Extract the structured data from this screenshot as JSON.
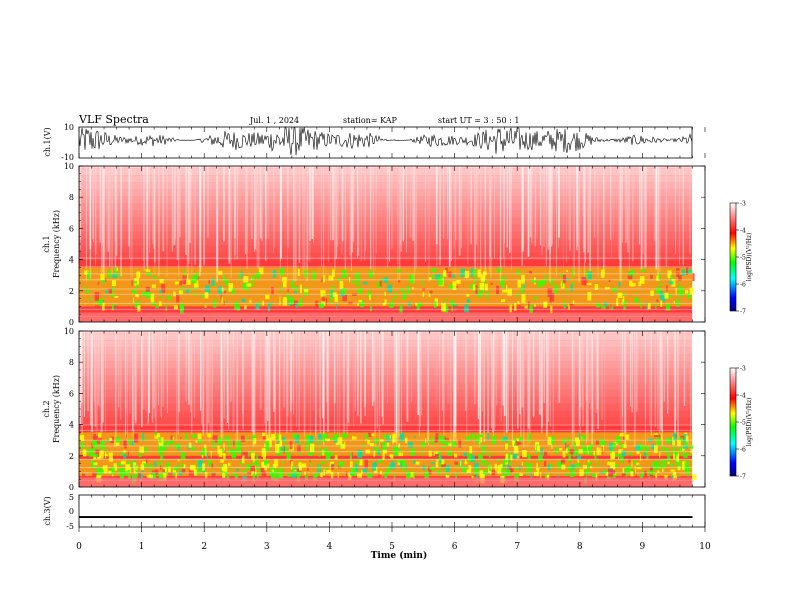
{
  "header": {
    "title": "VLF Spectra",
    "date": "Jul. 1 , 2024",
    "station": "station= KAP",
    "start_ut": "start UT = 3 : 50 : 1"
  },
  "colors": {
    "waveform": "#000000",
    "colormap": [
      "#00007f",
      "#0000ff",
      "#00ffff",
      "#00ff00",
      "#ffff00",
      "#ff0000",
      "#ff8080",
      "#ffffff"
    ]
  },
  "chart_data": [
    {
      "type": "line",
      "name": "ch1-waveform",
      "ylabel": "ch.1(V)",
      "ylim": [
        -10,
        10
      ],
      "yticklabels": [
        "10",
        "-10"
      ],
      "xlim": [
        0,
        10
      ],
      "description_of_signal": "dense oscillating waveform with envelope varying about 0 V"
    },
    {
      "type": "heatmap",
      "name": "ch1-spectrogram",
      "ylabel_line1": "ch.1",
      "ylabel_line2": "Frequency (kHz)",
      "ylim": [
        0,
        10
      ],
      "yticks": [
        0,
        2,
        4,
        6,
        8,
        10
      ],
      "xlim": [
        0,
        10
      ],
      "data_end_min": 9.8,
      "colorbar": {
        "label": "log(PSD)(V²/Hz)",
        "range": [
          -7,
          -3
        ],
        "ticks": [
          "-3",
          "-4",
          "-5",
          "-6",
          "-7"
        ]
      },
      "bands_khz": [
        [
          1.0,
          3.5
        ]
      ]
    },
    {
      "type": "heatmap",
      "name": "ch2-spectrogram",
      "ylabel_line1": "ch.2",
      "ylabel_line2": "Frequency (kHz)",
      "ylim": [
        0,
        10
      ],
      "yticks": [
        0,
        2,
        4,
        6,
        8,
        10
      ],
      "xlim": [
        0,
        10
      ],
      "data_end_min": 9.8,
      "colorbar": {
        "label": "log(PSD)(V²/Hz)",
        "range": [
          -7,
          -3
        ],
        "ticks": [
          "-3",
          "-4",
          "-5",
          "-6",
          "-7"
        ]
      },
      "bands_khz": [
        [
          0.7,
          1.8
        ],
        [
          2.0,
          3.5
        ]
      ]
    },
    {
      "type": "line",
      "name": "ch3-waveform",
      "ylabel": "ch.3(V)",
      "ylim": [
        -5,
        5
      ],
      "yticklabels": [
        "5",
        "0",
        "-5"
      ],
      "xlim": [
        0,
        10
      ],
      "xlabel": "Time (min)",
      "xticks": [
        0,
        1,
        2,
        3,
        4,
        5,
        6,
        7,
        8,
        9,
        10
      ],
      "signal_level_v": [
        -2.2,
        -1.6
      ]
    }
  ]
}
